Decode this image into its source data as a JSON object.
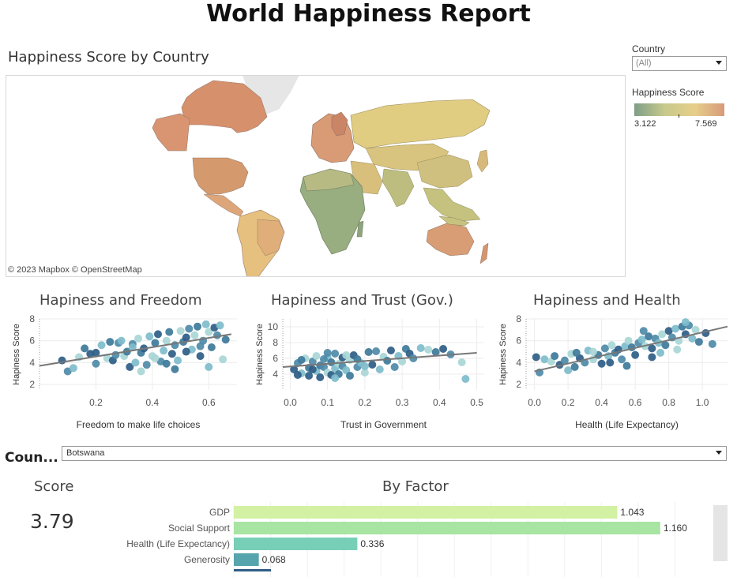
{
  "header": {
    "title": "World Happiness Report"
  },
  "map": {
    "title": "Happiness Score by Country",
    "credit": "© 2023 Mapbox  © OpenStreetMap"
  },
  "filters": {
    "country_label": "Country",
    "country_value": "(All)"
  },
  "legend": {
    "title": "Happiness Score",
    "min": "3.122",
    "max": "7.569",
    "colors": [
      "#7d9e86",
      "#c7c98c",
      "#e6cf8a",
      "#d79a7a"
    ]
  },
  "bottom": {
    "country_label": "Coun...",
    "country_value": "Botswana",
    "score_title": "Score",
    "score_value": "3.79",
    "factor_title": "By Factor"
  },
  "chart_data": [
    {
      "type": "scatter",
      "title": "Hapiness and Freedom",
      "xlabel": "Freedom to make life choices",
      "ylabel": "Hapiness Score",
      "xlim": [
        0.0,
        0.7
      ],
      "ylim": [
        1.5,
        8.0
      ],
      "xticks": [
        "0.2",
        "0.4",
        "0.6"
      ],
      "yticks": [
        "2",
        "4",
        "6",
        "8"
      ],
      "trend": [
        [
          0.0,
          3.7
        ],
        [
          0.68,
          6.6
        ]
      ],
      "points": [
        [
          0.08,
          4.2
        ],
        [
          0.1,
          3.2
        ],
        [
          0.12,
          3.5
        ],
        [
          0.14,
          4.5
        ],
        [
          0.16,
          5.3
        ],
        [
          0.18,
          4.8
        ],
        [
          0.2,
          3.9
        ],
        [
          0.22,
          5.6
        ],
        [
          0.24,
          4.4
        ],
        [
          0.25,
          5.9
        ],
        [
          0.26,
          4.2
        ],
        [
          0.28,
          5.8
        ],
        [
          0.29,
          6.0
        ],
        [
          0.3,
          4.6
        ],
        [
          0.31,
          5.0
        ],
        [
          0.32,
          3.6
        ],
        [
          0.33,
          5.7
        ],
        [
          0.34,
          4.0
        ],
        [
          0.35,
          6.2
        ],
        [
          0.36,
          4.9
        ],
        [
          0.37,
          5.3
        ],
        [
          0.38,
          3.8
        ],
        [
          0.39,
          6.4
        ],
        [
          0.4,
          4.6
        ],
        [
          0.41,
          5.8
        ],
        [
          0.42,
          6.6
        ],
        [
          0.43,
          4.1
        ],
        [
          0.44,
          5.1
        ],
        [
          0.45,
          6.0
        ],
        [
          0.46,
          6.8
        ],
        [
          0.47,
          4.8
        ],
        [
          0.48,
          5.6
        ],
        [
          0.49,
          4.2
        ],
        [
          0.5,
          6.9
        ],
        [
          0.51,
          5.9
        ],
        [
          0.52,
          6.3
        ],
        [
          0.53,
          7.1
        ],
        [
          0.54,
          5.2
        ],
        [
          0.55,
          6.5
        ],
        [
          0.56,
          7.3
        ],
        [
          0.57,
          4.6
        ],
        [
          0.58,
          6.0
        ],
        [
          0.59,
          7.5
        ],
        [
          0.6,
          6.8
        ],
        [
          0.61,
          5.4
        ],
        [
          0.62,
          7.2
        ],
        [
          0.63,
          6.5
        ],
        [
          0.64,
          7.4
        ],
        [
          0.65,
          4.3
        ],
        [
          0.66,
          6.1
        ],
        [
          0.2,
          4.9
        ],
        [
          0.27,
          4.7
        ],
        [
          0.33,
          5.4
        ],
        [
          0.41,
          4.4
        ],
        [
          0.45,
          3.9
        ],
        [
          0.52,
          5.0
        ],
        [
          0.57,
          5.5
        ],
        [
          0.6,
          3.6
        ],
        [
          0.36,
          3.2
        ],
        [
          0.48,
          3.4
        ]
      ]
    },
    {
      "type": "scatter",
      "title": "Hapiness and Trust (Gov.)",
      "xlabel": "Trust in Government",
      "ylabel": "Hapiness Score",
      "xlim": [
        -0.02,
        0.52
      ],
      "ylim": [
        2.0,
        11.0
      ],
      "xticks": [
        "0.0",
        "0.1",
        "0.2",
        "0.3",
        "0.4",
        "0.5"
      ],
      "yticks": [
        "4",
        "6",
        "8",
        "10"
      ],
      "trend": [
        [
          -0.02,
          4.9
        ],
        [
          0.5,
          6.7
        ]
      ],
      "points": [
        [
          0.01,
          4.6
        ],
        [
          0.02,
          5.4
        ],
        [
          0.03,
          4.1
        ],
        [
          0.04,
          6.0
        ],
        [
          0.05,
          4.8
        ],
        [
          0.05,
          3.8
        ],
        [
          0.06,
          5.6
        ],
        [
          0.07,
          4.4
        ],
        [
          0.07,
          6.3
        ],
        [
          0.08,
          5.1
        ],
        [
          0.08,
          3.6
        ],
        [
          0.09,
          4.9
        ],
        [
          0.1,
          6.1
        ],
        [
          0.1,
          4.2
        ],
        [
          0.11,
          5.5
        ],
        [
          0.11,
          3.9
        ],
        [
          0.12,
          6.6
        ],
        [
          0.12,
          4.7
        ],
        [
          0.13,
          5.3
        ],
        [
          0.13,
          4.0
        ],
        [
          0.14,
          6.1
        ],
        [
          0.14,
          5.0
        ],
        [
          0.15,
          4.5
        ],
        [
          0.16,
          5.8
        ],
        [
          0.16,
          3.8
        ],
        [
          0.17,
          6.4
        ],
        [
          0.18,
          4.9
        ],
        [
          0.19,
          5.4
        ],
        [
          0.2,
          4.2
        ],
        [
          0.21,
          6.8
        ],
        [
          0.22,
          5.2
        ],
        [
          0.23,
          6.9
        ],
        [
          0.24,
          4.6
        ],
        [
          0.25,
          6.2
        ],
        [
          0.26,
          5.7
        ],
        [
          0.27,
          7.0
        ],
        [
          0.28,
          4.9
        ],
        [
          0.29,
          6.3
        ],
        [
          0.3,
          5.6
        ],
        [
          0.31,
          7.2
        ],
        [
          0.32,
          6.6
        ],
        [
          0.33,
          6.0
        ],
        [
          0.35,
          7.3
        ],
        [
          0.37,
          7.1
        ],
        [
          0.39,
          6.8
        ],
        [
          0.41,
          7.2
        ],
        [
          0.43,
          6.5
        ],
        [
          0.47,
          3.4
        ],
        [
          0.46,
          5.5
        ],
        [
          0.03,
          5.8
        ],
        [
          0.06,
          4.6
        ],
        [
          0.09,
          5.9
        ],
        [
          0.12,
          3.5
        ],
        [
          0.15,
          6.4
        ],
        [
          0.18,
          5.9
        ],
        [
          0.02,
          3.9
        ],
        [
          0.1,
          6.7
        ],
        [
          0.2,
          5.0
        ]
      ]
    },
    {
      "type": "scatter",
      "title": "Hapiness and Health",
      "xlabel": "Health (Life Expectancy)",
      "ylabel": "Hapiness Score",
      "xlim": [
        -0.05,
        1.15
      ],
      "ylim": [
        1.5,
        8.0
      ],
      "xticks": [
        "0.0",
        "0.2",
        "0.4",
        "0.6",
        "0.8",
        "1.0"
      ],
      "yticks": [
        "2",
        "4",
        "6",
        "8"
      ],
      "trend": [
        [
          0.0,
          3.2
        ],
        [
          1.15,
          7.3
        ]
      ],
      "points": [
        [
          0.01,
          4.5
        ],
        [
          0.03,
          3.1
        ],
        [
          0.06,
          4.3
        ],
        [
          0.1,
          4.1
        ],
        [
          0.12,
          4.6
        ],
        [
          0.15,
          3.8
        ],
        [
          0.18,
          4.2
        ],
        [
          0.2,
          3.3
        ],
        [
          0.22,
          4.8
        ],
        [
          0.24,
          3.6
        ],
        [
          0.27,
          4.4
        ],
        [
          0.3,
          4.0
        ],
        [
          0.32,
          5.1
        ],
        [
          0.35,
          4.3
        ],
        [
          0.38,
          4.7
        ],
        [
          0.4,
          3.9
        ],
        [
          0.42,
          5.3
        ],
        [
          0.44,
          4.6
        ],
        [
          0.46,
          5.6
        ],
        [
          0.48,
          4.9
        ],
        [
          0.5,
          5.2
        ],
        [
          0.52,
          4.3
        ],
        [
          0.54,
          5.5
        ],
        [
          0.56,
          6.0
        ],
        [
          0.58,
          5.4
        ],
        [
          0.6,
          4.7
        ],
        [
          0.62,
          5.8
        ],
        [
          0.64,
          6.1
        ],
        [
          0.66,
          5.5
        ],
        [
          0.68,
          6.4
        ],
        [
          0.7,
          5.3
        ],
        [
          0.72,
          6.2
        ],
        [
          0.74,
          5.8
        ],
        [
          0.76,
          6.6
        ],
        [
          0.78,
          5.6
        ],
        [
          0.8,
          6.9
        ],
        [
          0.82,
          6.3
        ],
        [
          0.84,
          7.1
        ],
        [
          0.86,
          6.0
        ],
        [
          0.88,
          7.3
        ],
        [
          0.9,
          6.6
        ],
        [
          0.92,
          7.4
        ],
        [
          0.94,
          6.2
        ],
        [
          0.96,
          7.0
        ],
        [
          0.98,
          5.9
        ],
        [
          1.02,
          6.7
        ],
        [
          1.06,
          5.7
        ],
        [
          0.75,
          4.9
        ],
        [
          0.85,
          5.2
        ],
        [
          0.55,
          3.7
        ],
        [
          0.45,
          4.0
        ],
        [
          0.65,
          6.9
        ],
        [
          0.9,
          7.7
        ],
        [
          0.35,
          5.0
        ],
        [
          0.25,
          4.9
        ],
        [
          0.7,
          4.5
        ]
      ]
    },
    {
      "type": "bar",
      "title": "By Factor",
      "orientation": "horizontal",
      "categories": [
        "GDP",
        "Social Support",
        "Health (Life Expectancy)",
        "Generosity"
      ],
      "values": [
        1.043,
        1.16,
        0.336,
        0.068
      ],
      "labels": [
        "1.043",
        "1.160",
        "0.336",
        "0.068"
      ],
      "colors": [
        "#d2f1a3",
        "#a8e4a2",
        "#78cfb8",
        "#56a5ae"
      ],
      "xlim": [
        0,
        1.3
      ]
    }
  ]
}
